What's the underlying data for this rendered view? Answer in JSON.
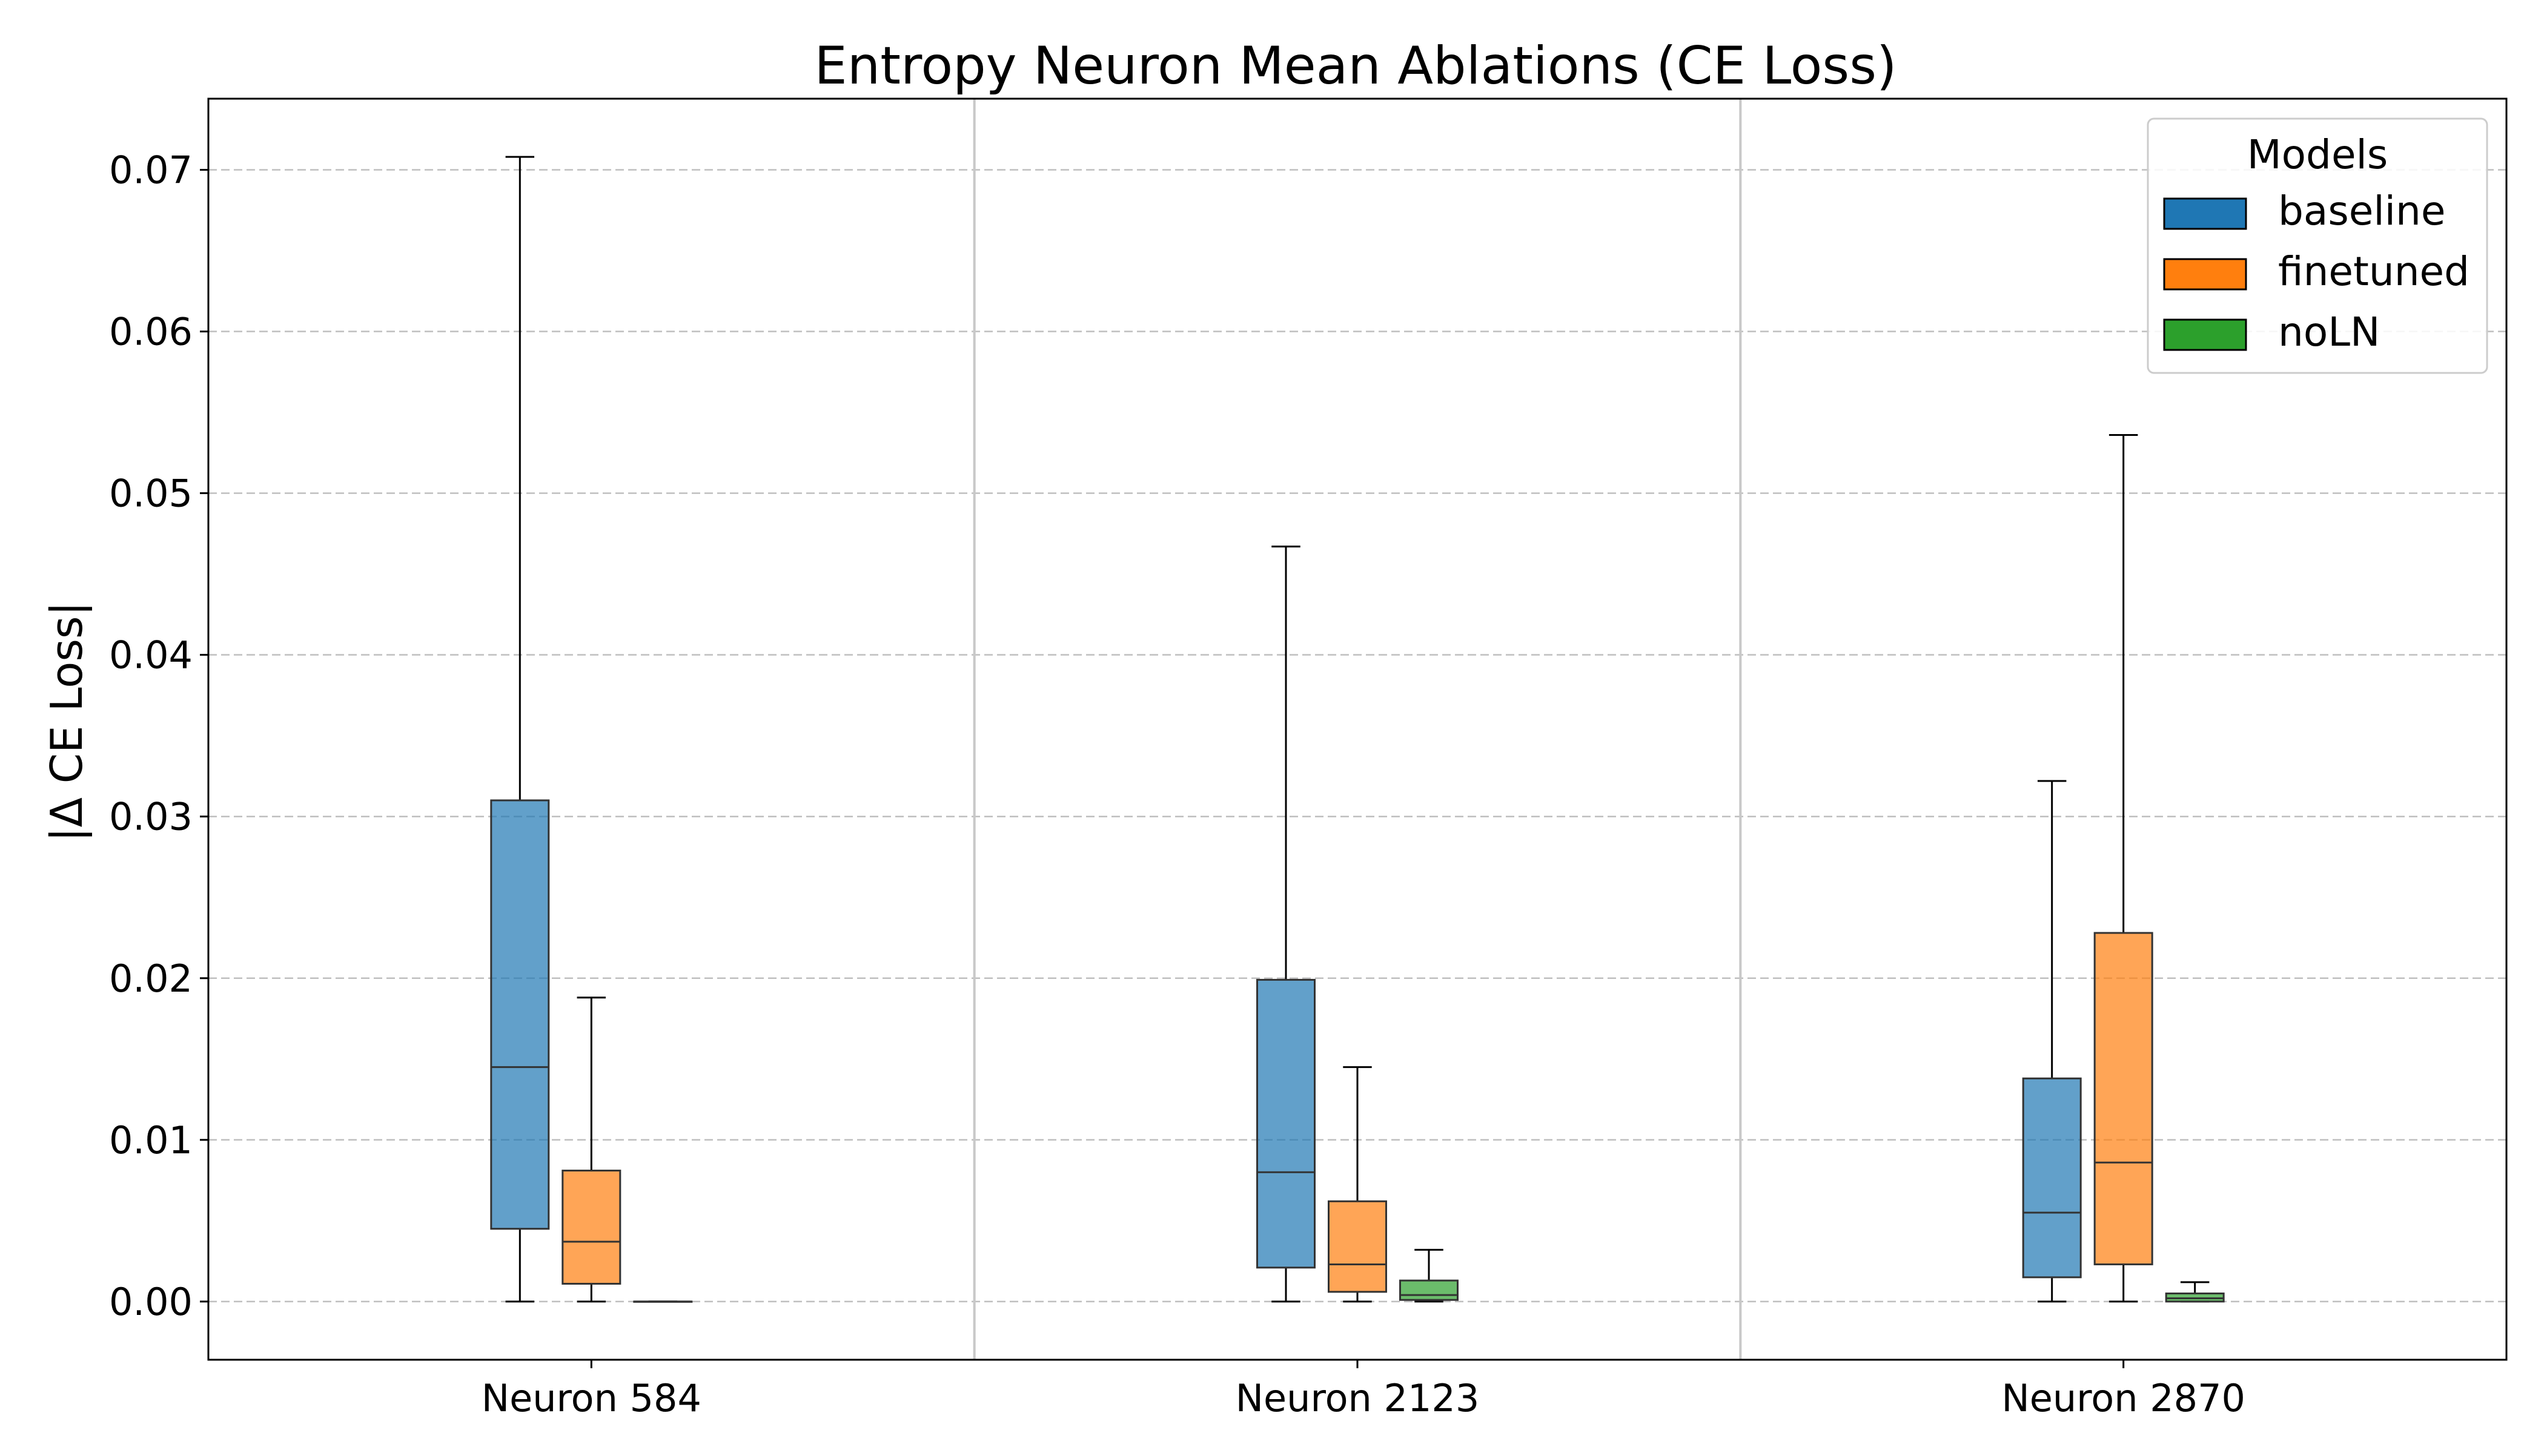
{
  "chart_data": {
    "type": "box",
    "title": "Entropy Neuron Mean Ablations (CE Loss)",
    "xlabel": "",
    "ylabel": "|Δ CE Loss|",
    "ylim": [
      -0.0036,
      0.0744
    ],
    "yticks": [
      0.0,
      0.01,
      0.02,
      0.03,
      0.04,
      0.05,
      0.06,
      0.07
    ],
    "ytick_labels": [
      "0.00",
      "0.01",
      "0.02",
      "0.03",
      "0.04",
      "0.05",
      "0.06",
      "0.07"
    ],
    "grid": true,
    "grid_axis": "y",
    "legend_placement": "top-right",
    "legend_title": "Models",
    "categories": [
      "Neuron 584",
      "Neuron 2123",
      "Neuron 2870"
    ],
    "series": [
      {
        "name": "baseline",
        "color": "#1f77b4",
        "boxes": [
          {
            "whislo": 0.0,
            "q1": 0.0045,
            "med": 0.0145,
            "q3": 0.031,
            "whishi": 0.0708
          },
          {
            "whislo": 0.0,
            "q1": 0.0021,
            "med": 0.008,
            "q3": 0.0199,
            "whishi": 0.0467
          },
          {
            "whislo": 0.0,
            "q1": 0.0015,
            "med": 0.0055,
            "q3": 0.0138,
            "whishi": 0.0322
          }
        ]
      },
      {
        "name": "finetuned",
        "color": "#ff7f0e",
        "boxes": [
          {
            "whislo": 0.0,
            "q1": 0.0011,
            "med": 0.0037,
            "q3": 0.0081,
            "whishi": 0.0188
          },
          {
            "whislo": 0.0,
            "q1": 0.0006,
            "med": 0.0023,
            "q3": 0.0062,
            "whishi": 0.0145
          },
          {
            "whislo": 0.0,
            "q1": 0.0023,
            "med": 0.0086,
            "q3": 0.0228,
            "whishi": 0.0536
          }
        ]
      },
      {
        "name": "noLN",
        "color": "#2ca02c",
        "boxes": [
          {
            "whislo": 0.0,
            "q1": 0.0,
            "med": 0.0,
            "q3": 0.0,
            "whishi": 0.0
          },
          {
            "whislo": 0.0,
            "q1": 0.0001,
            "med": 0.0004,
            "q3": 0.0013,
            "whishi": 0.0032
          },
          {
            "whislo": 0.0,
            "q1": 0.0,
            "med": 0.0002,
            "q3": 0.0005,
            "whishi": 0.0012
          }
        ]
      }
    ]
  }
}
